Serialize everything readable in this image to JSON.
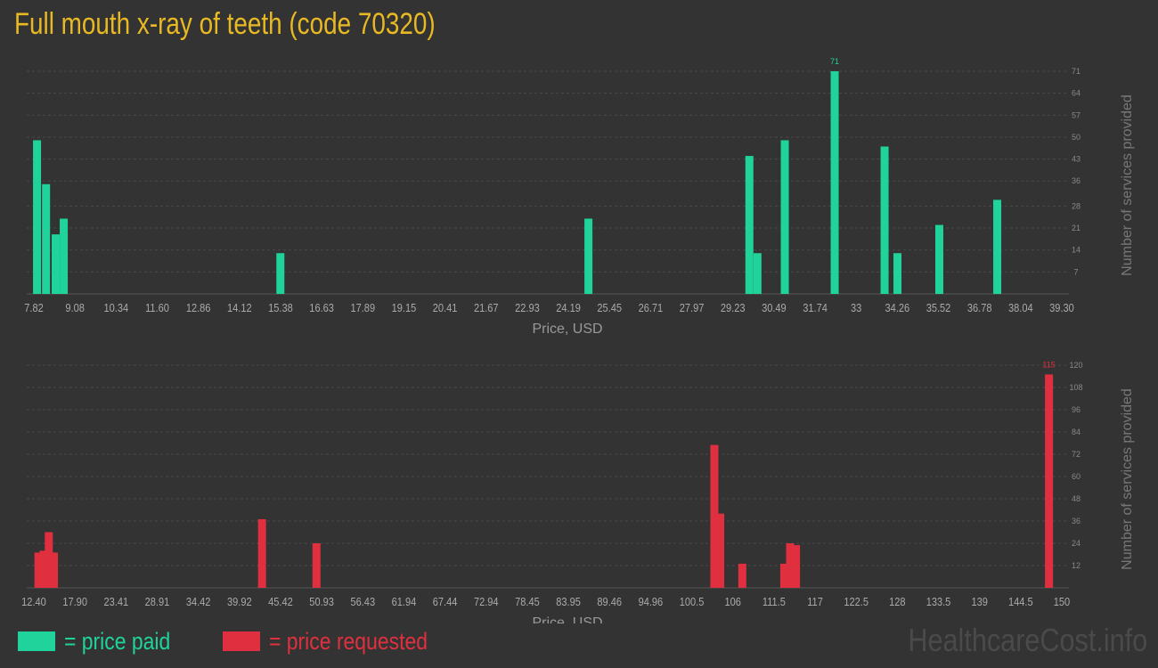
{
  "title": "Full mouth x-ray of teeth (code 70320)",
  "legend": {
    "paid_label": "= price paid",
    "paid_color": "#1fd39a",
    "requested_label": "= price requested",
    "requested_color": "#e0303f"
  },
  "watermark": "HealthcareCost.info",
  "chart_data": [
    {
      "type": "bar",
      "name": "price paid",
      "color": "#1fd39a",
      "xlabel": "Price, USD",
      "ylabel": "Number of services provided",
      "xlim": [
        7.5,
        39.6
      ],
      "ylim": [
        0,
        71
      ],
      "x_ticks": [
        "7.82",
        "9.08",
        "10.34",
        "11.60",
        "12.86",
        "14.12",
        "15.38",
        "16.63",
        "17.89",
        "19.15",
        "20.41",
        "21.67",
        "22.93",
        "24.19",
        "25.45",
        "26.71",
        "27.97",
        "29.23",
        "30.49",
        "31.74",
        "33",
        "34.26",
        "35.52",
        "36.78",
        "38.04",
        "39.30"
      ],
      "y_ticks": [
        "7",
        "14",
        "21",
        "28",
        "36",
        "43",
        "50",
        "57",
        "64",
        "71"
      ],
      "peak_label": "71",
      "bars": [
        {
          "x": 7.82,
          "value": 49
        },
        {
          "x": 8.1,
          "value": 35
        },
        {
          "x": 8.4,
          "value": 19
        },
        {
          "x": 8.65,
          "value": 24
        },
        {
          "x": 15.38,
          "value": 13
        },
        {
          "x": 24.95,
          "value": 24
        },
        {
          "x": 29.95,
          "value": 44
        },
        {
          "x": 30.2,
          "value": 13
        },
        {
          "x": 31.05,
          "value": 49
        },
        {
          "x": 32.6,
          "value": 71
        },
        {
          "x": 34.15,
          "value": 47
        },
        {
          "x": 34.55,
          "value": 13
        },
        {
          "x": 35.85,
          "value": 22
        },
        {
          "x": 37.65,
          "value": 30
        }
      ]
    },
    {
      "type": "bar",
      "name": "price requested",
      "color": "#e0303f",
      "xlabel": "Price, USD",
      "ylabel": "Number of services provided",
      "xlim": [
        11.0,
        151.5
      ],
      "ylim": [
        0,
        120
      ],
      "x_ticks": [
        "12.40",
        "17.90",
        "23.41",
        "28.91",
        "34.42",
        "39.92",
        "45.42",
        "50.93",
        "56.43",
        "61.94",
        "67.44",
        "72.94",
        "78.45",
        "83.95",
        "89.46",
        "94.96",
        "100.5",
        "106",
        "111.5",
        "117",
        "122.5",
        "128",
        "133.5",
        "139",
        "144.5",
        "150"
      ],
      "y_ticks": [
        "12",
        "24",
        "36",
        "48",
        "60",
        "72",
        "84",
        "96",
        "108",
        "120"
      ],
      "peak_label": "115",
      "bars": [
        {
          "x": 12.6,
          "value": 19
        },
        {
          "x": 13.3,
          "value": 20
        },
        {
          "x": 14.0,
          "value": 30
        },
        {
          "x": 14.7,
          "value": 19
        },
        {
          "x": 43.0,
          "value": 37
        },
        {
          "x": 50.4,
          "value": 24
        },
        {
          "x": 104.5,
          "value": 77
        },
        {
          "x": 105.3,
          "value": 40
        },
        {
          "x": 108.3,
          "value": 13
        },
        {
          "x": 114.0,
          "value": 13
        },
        {
          "x": 114.8,
          "value": 24
        },
        {
          "x": 115.6,
          "value": 23
        },
        {
          "x": 150.0,
          "value": 115
        }
      ]
    }
  ]
}
